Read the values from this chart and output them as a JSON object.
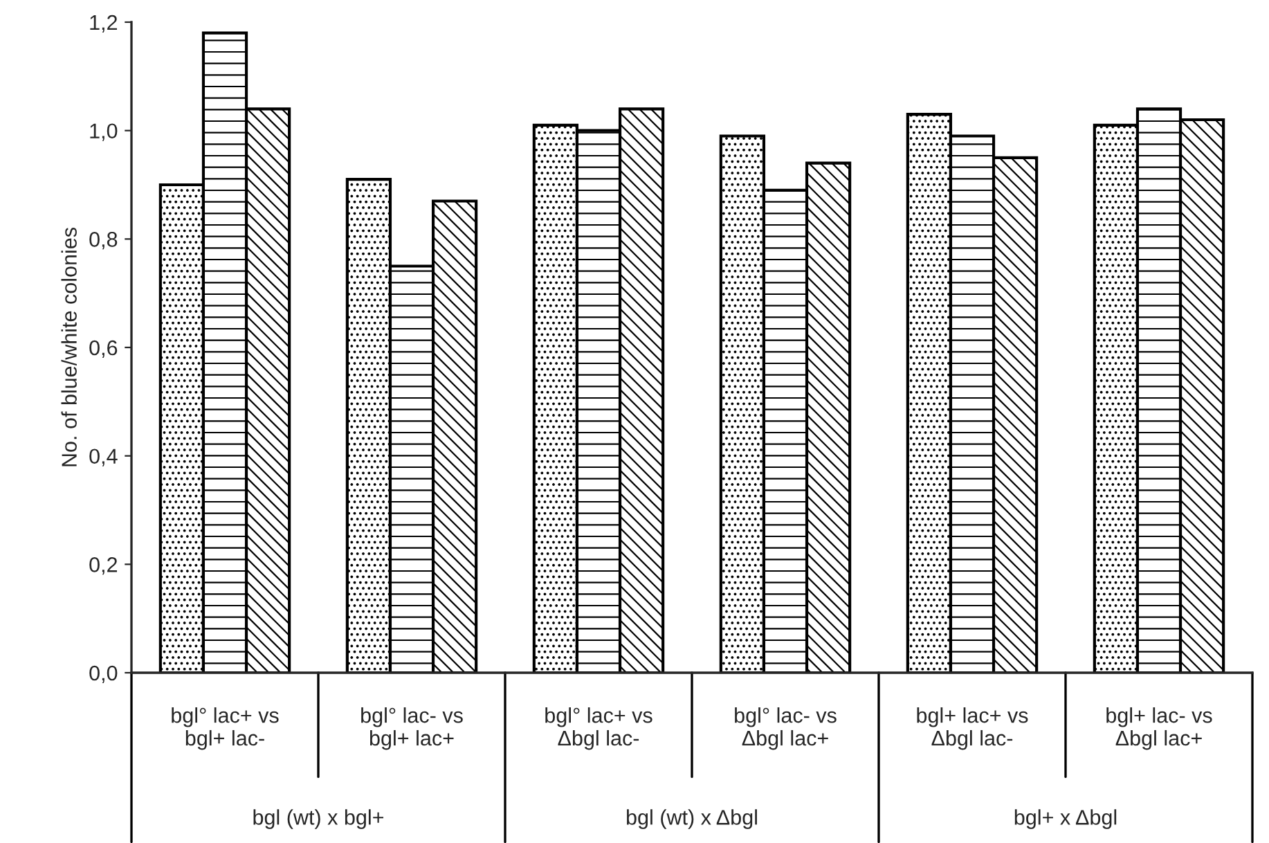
{
  "chart_data": {
    "type": "bar",
    "ylabel": "No. of blue/white colonies",
    "categories": [
      "bgl° lac+ vs\nbgl+ lac-",
      "bgl° lac- vs\nbgl+ lac+",
      "bgl° lac+ vs\nΔbgl lac-",
      "bgl° lac- vs\nΔbgl lac+",
      "bgl+ lac+ vs\nΔbgl lac-",
      "bgl+ lac- vs\nΔbgl lac+"
    ],
    "series": [
      {
        "values": [
          0.9,
          0.91,
          1.01,
          0.99,
          1.03,
          1.01
        ]
      },
      {
        "values": [
          1.18,
          0.75,
          1.0,
          0.89,
          0.99,
          1.04
        ]
      },
      {
        "values": [
          1.04,
          0.87,
          1.04,
          0.94,
          0.95,
          1.02
        ]
      }
    ],
    "ylim": [
      0,
      1.2
    ],
    "yticks": [
      {
        "value": 0,
        "label": "0,0"
      },
      {
        "value": 0.2,
        "label": "0,2"
      },
      {
        "value": 0.4,
        "label": "0,4"
      },
      {
        "value": 0.6,
        "label": "0,6"
      },
      {
        "value": 0.8,
        "label": "0,8"
      },
      {
        "value": 1.0,
        "label": "1,0"
      },
      {
        "value": 1.2,
        "label": "1,2"
      }
    ],
    "annotations": [
      "bgl (wt) x bgl+",
      "bgl (wt) x Δbgl",
      "bgl+ x Δbgl"
    ],
    "grid": false,
    "legend": false
  }
}
